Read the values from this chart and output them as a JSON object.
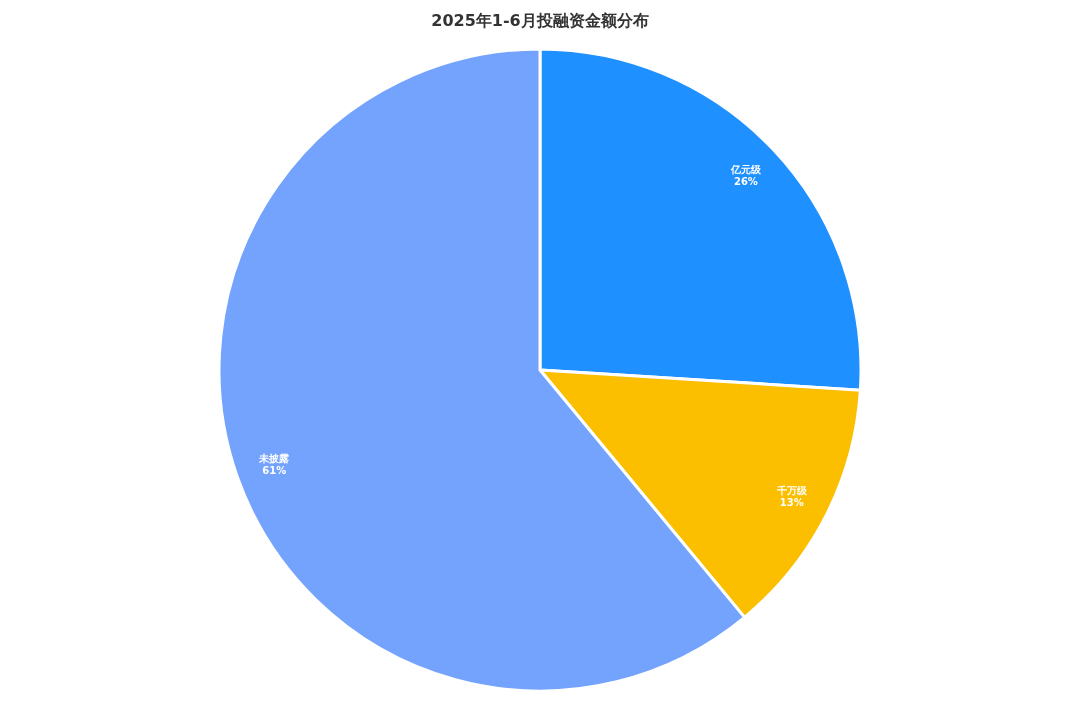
{
  "chart_data": {
    "type": "pie",
    "title": "2025年1-6月投融资金额分布",
    "categories": [
      "亿元级",
      "千万级",
      "未披露"
    ],
    "values": [
      26,
      13,
      61
    ],
    "colors": [
      "#1e90ff",
      "#fbbf00",
      "#74a3fd"
    ],
    "value_labels": [
      "26%",
      "13%",
      "61%"
    ]
  }
}
